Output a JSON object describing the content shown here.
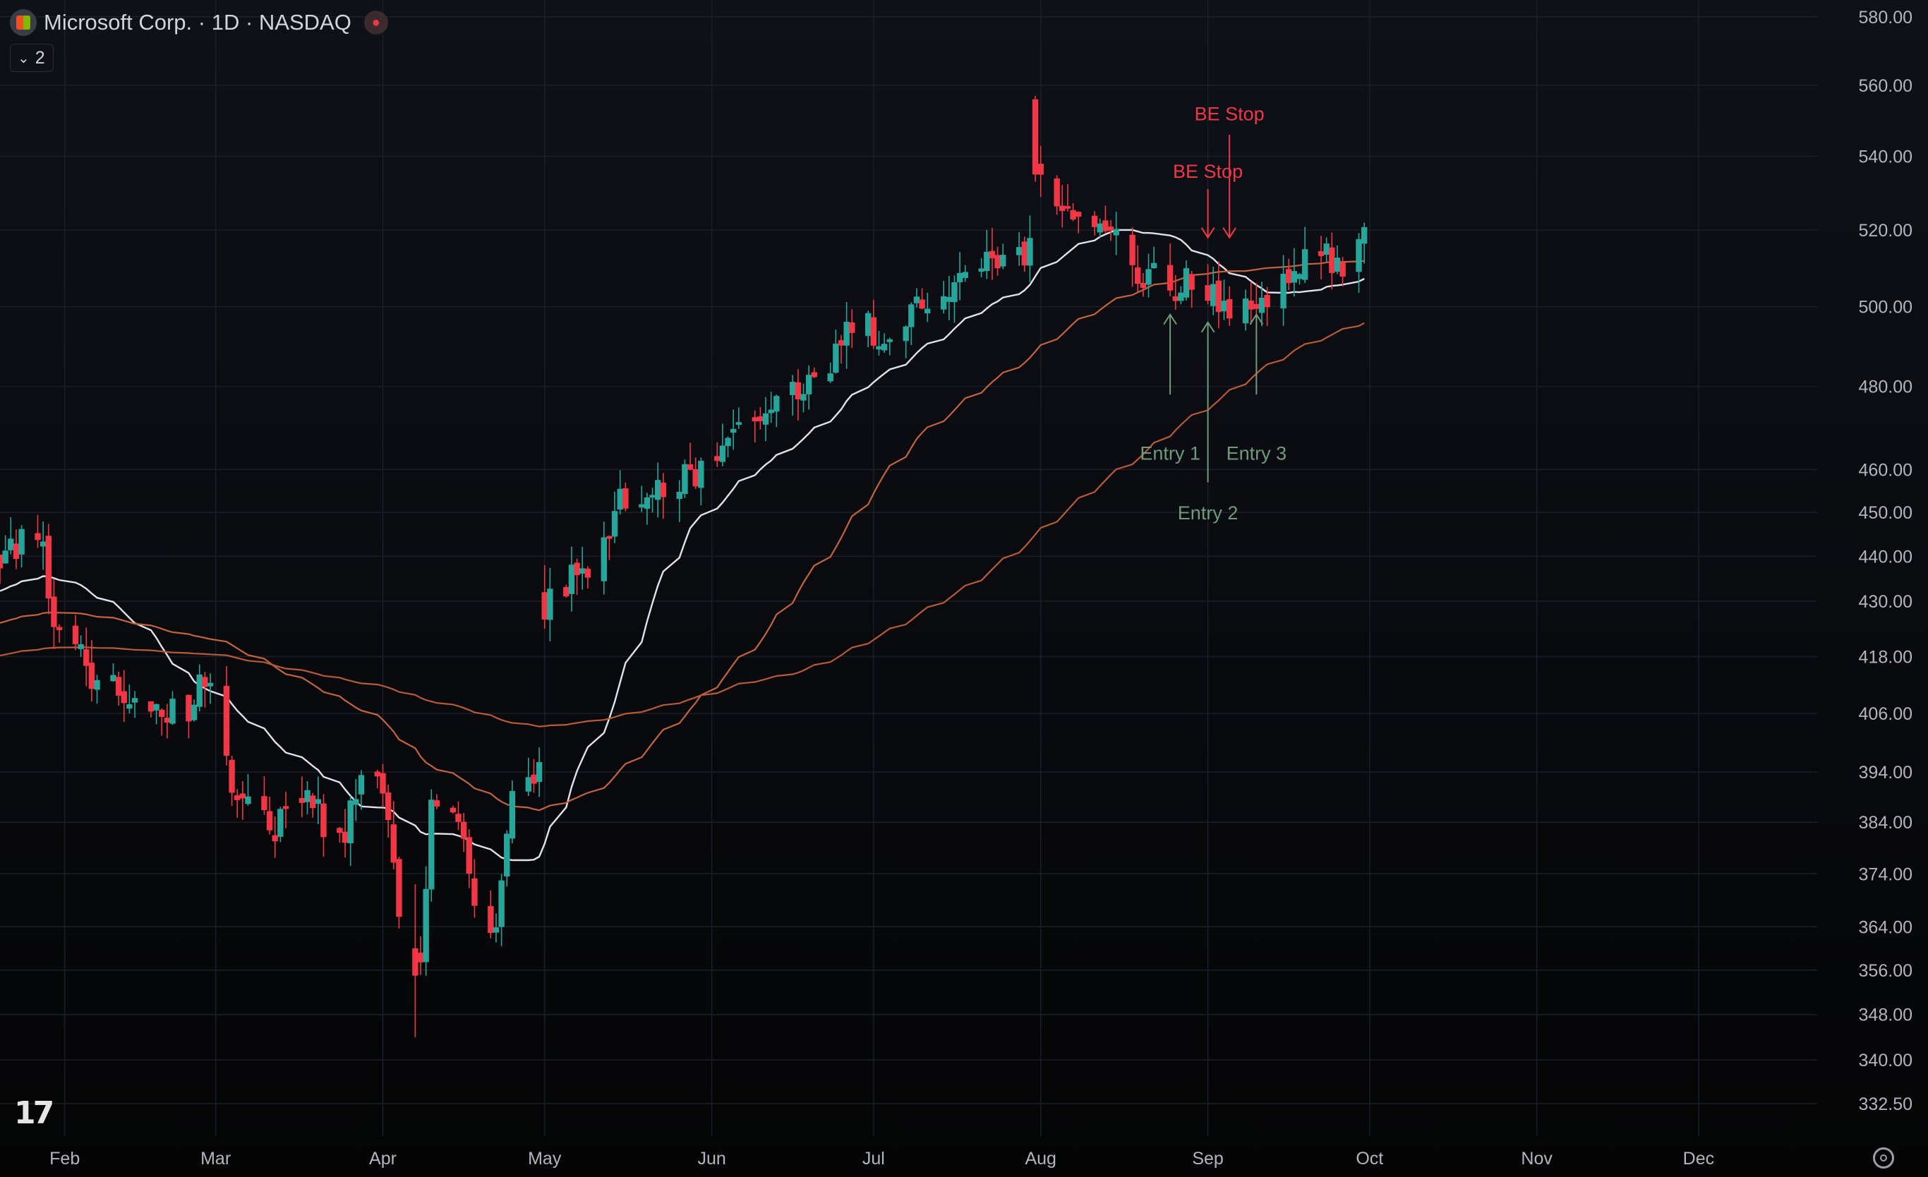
{
  "header": {
    "title": "Microsoft Corp. · 1D · NASDAQ",
    "collapse_count": "2"
  },
  "colors": {
    "up": "#26a69a",
    "down": "#f23645",
    "sma_short": "#e0e3eb",
    "sma_mid": "#c4633d",
    "sma_long": "#b85a35",
    "entry": "#6f9a7c",
    "stop": "#f23645"
  },
  "chart_data": {
    "type": "candlestick",
    "symbol": "MSFT",
    "interval": "1D",
    "yscale": "log",
    "ylim": [
      327,
      585
    ],
    "xlim": [
      "2025-01-20",
      "2025-12-23"
    ],
    "y_ticks": [
      "580.00",
      "560.00",
      "540.00",
      "520.00",
      "500.00",
      "480.00",
      "460.00",
      "450.00",
      "440.00",
      "430.00",
      "418.00",
      "406.00",
      "394.00",
      "384.00",
      "374.00",
      "364.00",
      "356.00",
      "348.00",
      "340.00",
      "332.50"
    ],
    "x_ticks": [
      {
        "label": "Feb",
        "date": "2025-02-01"
      },
      {
        "label": "Mar",
        "date": "2025-03-01"
      },
      {
        "label": "Apr",
        "date": "2025-04-01"
      },
      {
        "label": "May",
        "date": "2025-05-01"
      },
      {
        "label": "Jun",
        "date": "2025-06-01"
      },
      {
        "label": "Jul",
        "date": "2025-07-01"
      },
      {
        "label": "Aug",
        "date": "2025-08-01"
      },
      {
        "label": "Sep",
        "date": "2025-09-01"
      },
      {
        "label": "Oct",
        "date": "2025-10-01"
      },
      {
        "label": "Nov",
        "date": "2025-11-01"
      },
      {
        "label": "Dec",
        "date": "2025-12-01"
      }
    ],
    "series": [
      {
        "kind": "ohlc",
        "anchors": [
          [
            "2025-01-20",
            440
          ],
          [
            "2025-01-27",
            447
          ],
          [
            "2025-01-30",
            427
          ],
          [
            "2025-02-06",
            414
          ],
          [
            "2025-02-14",
            408
          ],
          [
            "2025-02-24",
            407
          ],
          [
            "2025-02-28",
            415
          ],
          [
            "2025-03-04",
            392
          ],
          [
            "2025-03-11",
            382
          ],
          [
            "2025-03-18",
            388
          ],
          [
            "2025-03-24",
            380
          ],
          [
            "2025-03-28",
            392
          ],
          [
            "2025-04-01",
            390
          ],
          [
            "2025-04-04",
            368
          ],
          [
            "2025-04-08",
            355
          ],
          [
            "2025-04-10",
            386
          ],
          [
            "2025-04-14",
            386
          ],
          [
            "2025-04-18",
            370
          ],
          [
            "2025-04-22",
            362
          ],
          [
            "2025-04-25",
            390
          ],
          [
            "2025-04-30",
            396
          ],
          [
            "2025-05-01",
            428
          ],
          [
            "2025-05-09",
            438
          ],
          [
            "2025-05-15",
            452
          ],
          [
            "2025-05-23",
            455
          ],
          [
            "2025-05-28",
            458
          ],
          [
            "2025-06-06",
            468
          ],
          [
            "2025-06-13",
            475
          ],
          [
            "2025-06-20",
            480
          ],
          [
            "2025-06-27",
            495
          ],
          [
            "2025-07-03",
            494
          ],
          [
            "2025-07-10",
            502
          ],
          [
            "2025-07-18",
            510
          ],
          [
            "2025-07-24",
            511
          ],
          [
            "2025-07-30",
            514
          ],
          [
            "2025-07-31",
            535
          ],
          [
            "2025-08-05",
            528
          ],
          [
            "2025-08-11",
            521
          ],
          [
            "2025-08-14",
            524
          ],
          [
            "2025-08-19",
            510
          ],
          [
            "2025-08-25",
            504
          ],
          [
            "2025-08-29",
            506
          ],
          [
            "2025-09-02",
            504
          ],
          [
            "2025-09-05",
            498
          ],
          [
            "2025-09-10",
            500
          ],
          [
            "2025-09-15",
            510
          ],
          [
            "2025-09-22",
            514
          ],
          [
            "2025-09-26",
            511
          ],
          [
            "2025-09-30",
            518
          ]
        ]
      },
      {
        "kind": "sma",
        "name": "",
        "period": 20,
        "color": "#e0e3eb"
      },
      {
        "kind": "sma",
        "name": "",
        "period": 50,
        "color": "#c4633d"
      },
      {
        "kind": "sma",
        "name": "",
        "period": 100,
        "color": "#b85a35"
      }
    ],
    "annotations": [
      {
        "text": "BE Stop",
        "date": "2025-09-01",
        "label_price": 536,
        "arrow_from": 531,
        "arrow_to": 518,
        "direction": "down",
        "color": "stop"
      },
      {
        "text": "BE Stop",
        "date": "2025-09-05",
        "label_price": 552,
        "arrow_from": 546,
        "arrow_to": 518,
        "direction": "down",
        "color": "stop"
      },
      {
        "text": "Entry 1",
        "date": "2025-08-25",
        "label_price": 464,
        "arrow_from": 478,
        "arrow_to": 498,
        "direction": "up",
        "color": "entry"
      },
      {
        "text": "Entry 2",
        "date": "2025-09-01",
        "label_price": 450,
        "arrow_from": 457,
        "arrow_to": 496,
        "direction": "up",
        "color": "entry"
      },
      {
        "text": "Entry 3",
        "date": "2025-09-10",
        "label_price": 464,
        "arrow_from": 478,
        "arrow_to": 498,
        "direction": "up",
        "color": "entry"
      }
    ]
  }
}
